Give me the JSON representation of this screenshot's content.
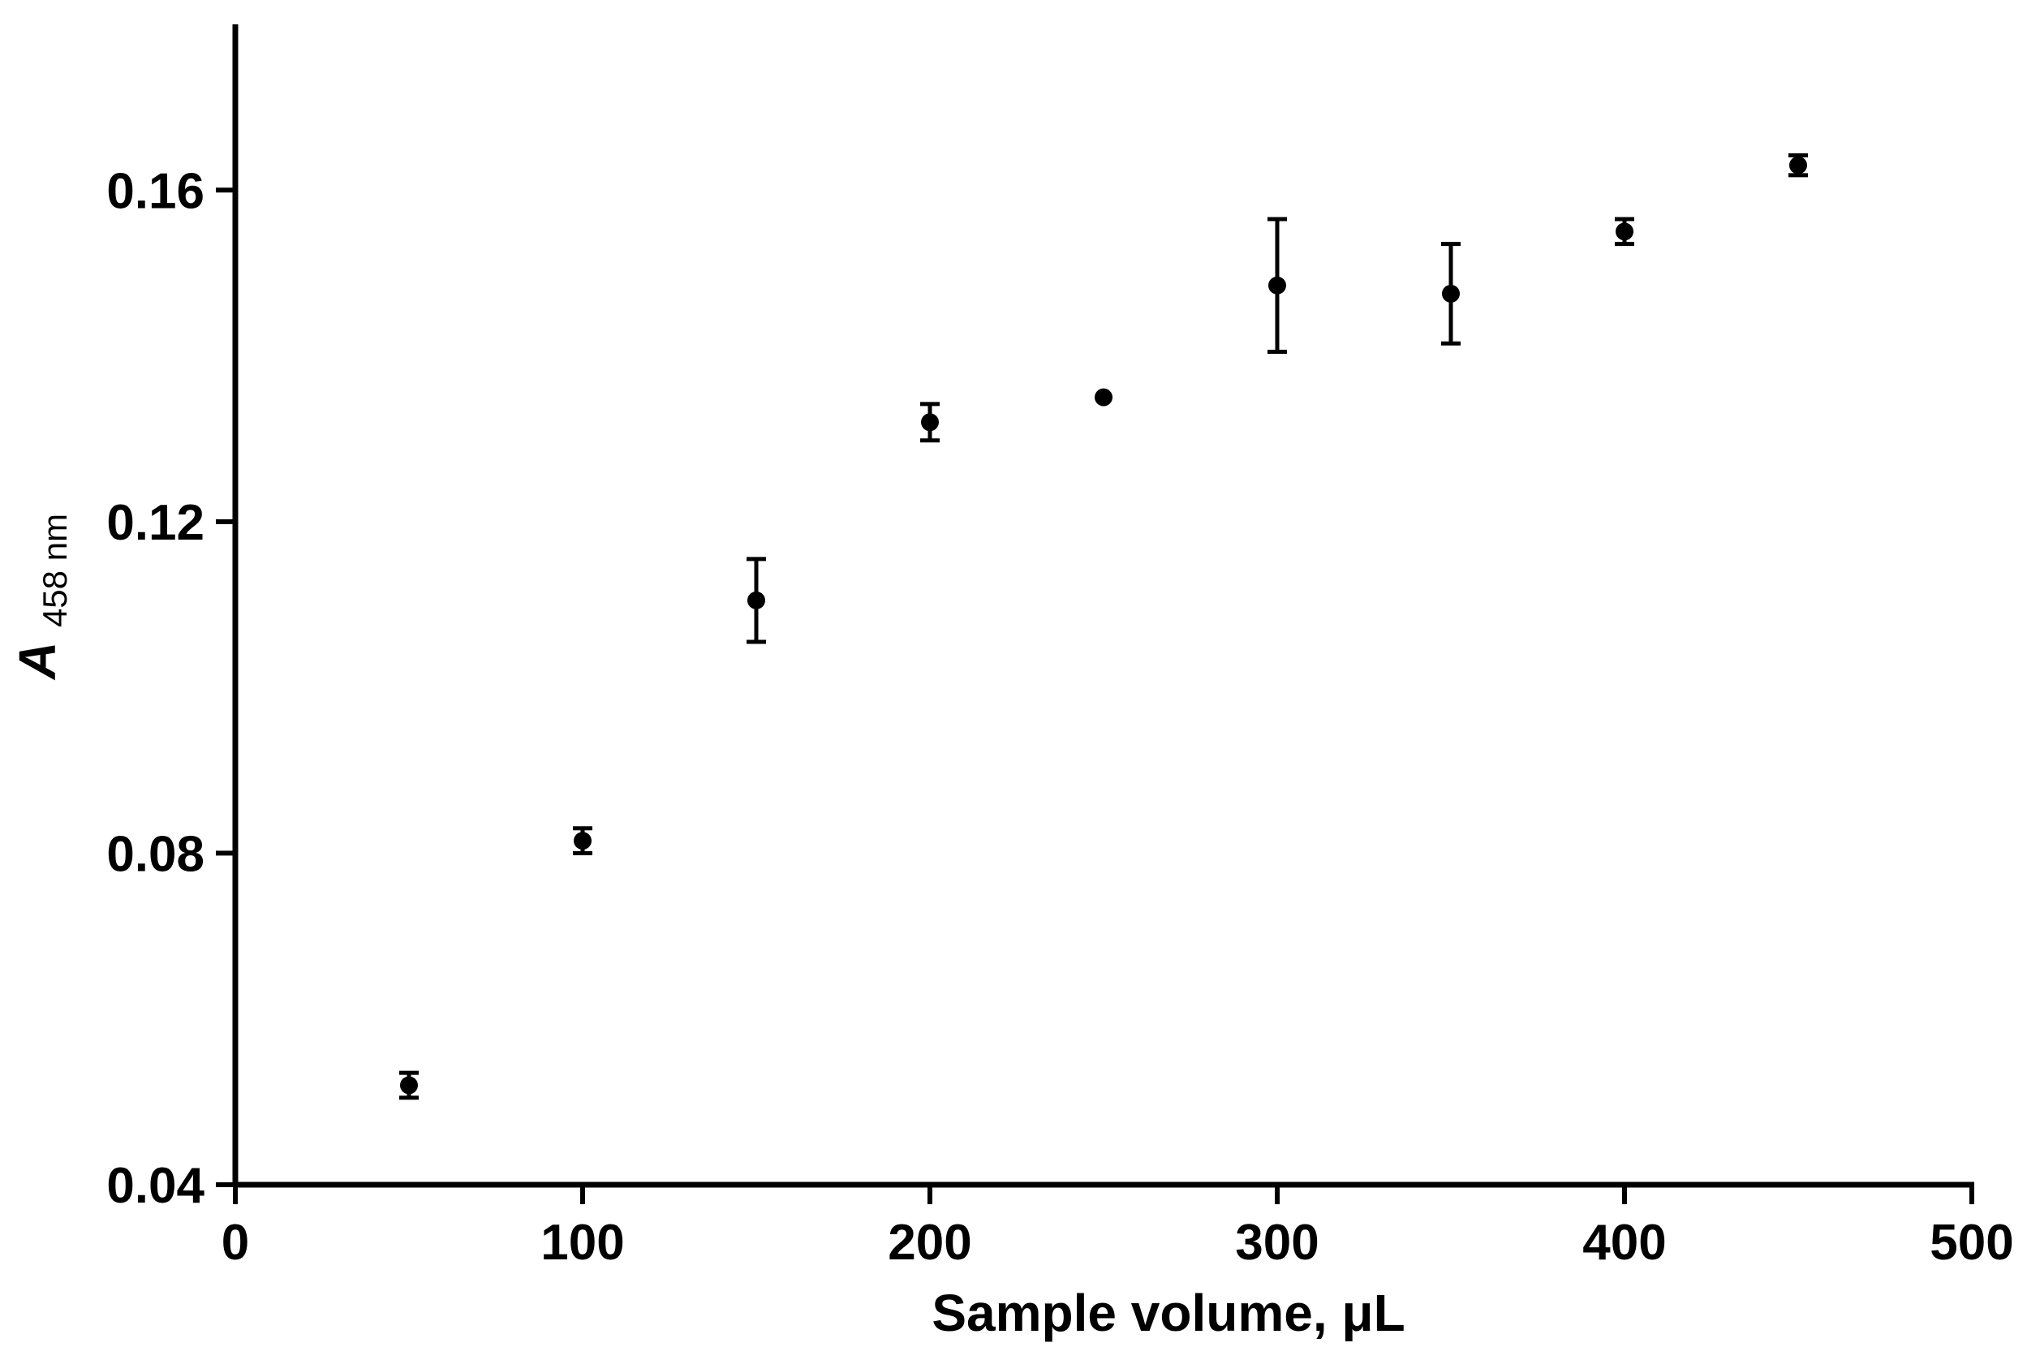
{
  "chart_data": {
    "type": "scatter",
    "xlabel": "Sample volume, μL",
    "ylabel": {
      "main": "A",
      "sub": "458 nm"
    },
    "xlim": [
      0,
      500
    ],
    "ylim": [
      0.04,
      0.18
    ],
    "x_ticks": [
      "0",
      "100",
      "200",
      "300",
      "400",
      "500"
    ],
    "y_ticks": [
      "0.04",
      "0.08",
      "0.12",
      "0.16"
    ],
    "grid": false,
    "legend": "none",
    "colors": {
      "marker": "#000000",
      "axis": "#000000"
    },
    "series": [
      {
        "x": [
          50,
          100,
          150,
          200,
          250,
          300,
          350,
          400,
          450
        ],
        "y": [
          0.052,
          0.0815,
          0.1105,
          0.132,
          0.135,
          0.1485,
          0.1475,
          0.155,
          0.163
        ],
        "error": [
          0.0015,
          0.0015,
          0.005,
          0.0022,
          0,
          0.008,
          0.006,
          0.0015,
          0.0012
        ]
      }
    ]
  }
}
